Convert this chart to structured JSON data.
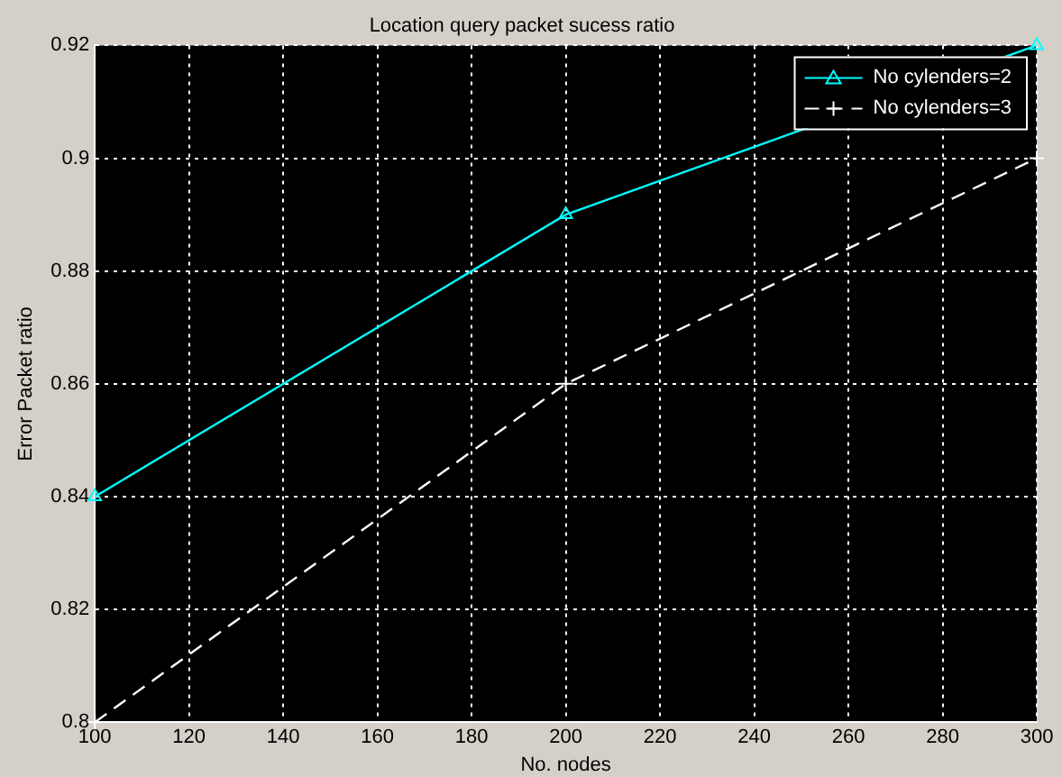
{
  "chart_data": {
    "type": "line",
    "title": "Location query packet sucess ratio",
    "xlabel": "No. nodes",
    "ylabel": "Error Packet ratio",
    "x": [
      100,
      200,
      300
    ],
    "series": [
      {
        "name": "No cylenders=2",
        "color": "#00ffff",
        "values": [
          0.84,
          0.89,
          0.92
        ],
        "marker": "triangle",
        "line_style": "solid"
      },
      {
        "name": "No cylenders=3",
        "color": "#ffffff",
        "values": [
          0.8,
          0.86,
          0.9
        ],
        "marker": "cross",
        "line_style": "dashed"
      }
    ],
    "xlim": [
      100,
      300
    ],
    "xticks": [
      100,
      120,
      140,
      160,
      180,
      200,
      220,
      240,
      260,
      280,
      300
    ],
    "ylim": [
      0.8,
      0.92
    ],
    "yticks": [
      0.8,
      0.82,
      0.84,
      0.86,
      0.88,
      0.9,
      0.92
    ],
    "grid": true,
    "legend": "top right"
  }
}
